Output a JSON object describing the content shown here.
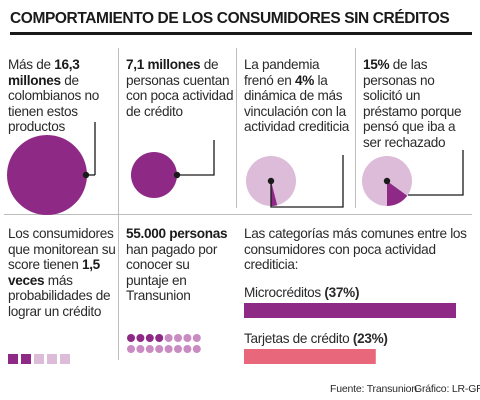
{
  "title": "COMPORTAMIENTO DE LOS CONSUMIDORES SIN CRÉDITOS",
  "panels": {
    "p1": {
      "pre": "Más de ",
      "bold": "16,3 millones",
      "post": " de colombianos no tienen estos productos"
    },
    "p2": {
      "pre": "",
      "bold": "7,1 millones",
      "post": " de personas cuentan con poca actividad de crédito"
    },
    "p3": {
      "pre": "La pandemia frenó en ",
      "bold": "4%",
      "post": " la dinámica de más vinculación con la actividad crediticia"
    },
    "p4": {
      "pre": "",
      "bold": "15%",
      "post": " de las personas no solicitó un préstamo porque pensó que iba a ser rechazado"
    },
    "p5": {
      "pre": "Los consumidores que monitorean su score tienen ",
      "bold": "1,5 veces",
      "post": " más probabilidades de lograr un crédito"
    },
    "p6": {
      "pre": "",
      "bold": "55.000 personas",
      "post": " han pagado por conocer su puntaje en Transunion"
    }
  },
  "categories_heading": "Las categorías más comunes entre los consumidores con poca actividad crediticia:",
  "chart_data": [
    {
      "type": "pie",
      "labels": [
        "La pandemia frenó en 4% la dinámica de más vinculación con la actividad crediticia"
      ],
      "values": [
        4
      ]
    },
    {
      "type": "pie",
      "labels": [
        "15% de las personas no solicitó un préstamo porque pensó que iba a ser rechazado"
      ],
      "values": [
        15
      ]
    },
    {
      "type": "bar",
      "categories": [
        "Microcréditos",
        "Tarjetas de crédito"
      ],
      "values": [
        37,
        23
      ],
      "value_labels": [
        "(37%)",
        "(23%)"
      ]
    }
  ],
  "colors": {
    "purple": "#8e2a86",
    "light_purple": "#dcbcd8",
    "pink": "#e8677a",
    "dark": "#1a1a1a"
  },
  "icons": {
    "circle_large": "filled-circle",
    "circle_medium": "filled-circle",
    "squares": "square-row",
    "dots": "dot-grid"
  },
  "footer": {
    "source": "Fuente: Transunion",
    "graphic": "Gráfico: LR-GR"
  }
}
